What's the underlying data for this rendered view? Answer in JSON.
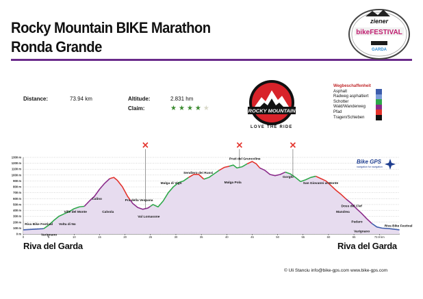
{
  "title_line1": "Rocky Mountain BIKE Marathon",
  "title_line2": "Ronda Grande",
  "logo_festival": {
    "top": "ziener",
    "main": "bikeFESTIVAL",
    "small": "GARDA"
  },
  "stats": {
    "distance_label": "Distance:",
    "distance_value": "73.94 km",
    "altitude_label": "Altitude:",
    "altitude_value": "2.831 hm",
    "claim_label": "Claim:",
    "claim_stars": 4,
    "claim_max": 5
  },
  "brand": {
    "name": "ROCKY MOUNTAIN",
    "tagline": "LOVE THE RIDE"
  },
  "legend": {
    "title": "Wegbeschaffenheit",
    "items": [
      {
        "label": "Asphalt",
        "color": "#3c5cab"
      },
      {
        "label": "Radweg asphaltiert",
        "color": "#7a9ad8"
      },
      {
        "label": "Schotter",
        "color": "#2ea84a"
      },
      {
        "label": "Wald/Wanderweg",
        "color": "#8a2a8a"
      },
      {
        "label": "Pfad",
        "color": "#e3322b"
      },
      {
        "label": "Tragen/Schieben",
        "color": "#111111"
      }
    ]
  },
  "chart_data": {
    "type": "area",
    "xlabel": "",
    "ylabel": "",
    "xlim": [
      0,
      74
    ],
    "ylim": [
      0,
      1300
    ],
    "x_ticks": [
      0,
      5,
      10,
      15,
      20,
      25,
      30,
      35,
      40,
      45,
      50,
      55,
      60,
      65,
      70
    ],
    "x_tick_labels": [
      "0",
      "5",
      "10",
      "15",
      "20",
      "25",
      "30",
      "35",
      "40",
      "45",
      "50",
      "55",
      "60",
      "65",
      "73.9 km"
    ],
    "y_ticks": [
      0,
      100,
      200,
      300,
      400,
      500,
      600,
      700,
      800,
      900,
      1000,
      1100,
      1200,
      1300
    ],
    "y_tick_labels": [
      "0 m",
      "100 m",
      "200 m",
      "300 m",
      "400 m",
      "500 m",
      "600 m",
      "700 m",
      "800 m",
      "900 m",
      "1000 m",
      "1100 m",
      "1200 m",
      "1300 m"
    ],
    "fill_color": "#e7dcef",
    "profile": [
      [
        0,
        70
      ],
      [
        2,
        80
      ],
      [
        4,
        90
      ],
      [
        5,
        150
      ],
      [
        6,
        230
      ],
      [
        7,
        300
      ],
      [
        8,
        340
      ],
      [
        9,
        380
      ],
      [
        10,
        430
      ],
      [
        11,
        460
      ],
      [
        12,
        470
      ],
      [
        13,
        560
      ],
      [
        14,
        640
      ],
      [
        15,
        760
      ],
      [
        16,
        860
      ],
      [
        17,
        940
      ],
      [
        17.8,
        960
      ],
      [
        18.5,
        910
      ],
      [
        19.5,
        800
      ],
      [
        20.5,
        640
      ],
      [
        21.5,
        520
      ],
      [
        22.5,
        450
      ],
      [
        23.5,
        420
      ],
      [
        24.5,
        440
      ],
      [
        25.5,
        500
      ],
      [
        26.5,
        460
      ],
      [
        27.5,
        560
      ],
      [
        28.5,
        700
      ],
      [
        29.5,
        800
      ],
      [
        30.5,
        870
      ],
      [
        31.5,
        900
      ],
      [
        32.5,
        960
      ],
      [
        33.5,
        1010
      ],
      [
        34.5,
        1010
      ],
      [
        35.5,
        930
      ],
      [
        36.5,
        960
      ],
      [
        37.5,
        1020
      ],
      [
        38.5,
        1080
      ],
      [
        39.5,
        1130
      ],
      [
        40.5,
        1150
      ],
      [
        41.3,
        1170
      ],
      [
        42,
        1120
      ],
      [
        43,
        1140
      ],
      [
        44,
        1190
      ],
      [
        45,
        1230
      ],
      [
        45.8,
        1190
      ],
      [
        46.5,
        1120
      ],
      [
        47.5,
        1080
      ],
      [
        48.5,
        1010
      ],
      [
        49.5,
        990
      ],
      [
        50.5,
        1010
      ],
      [
        51.5,
        1050
      ],
      [
        52.5,
        1020
      ],
      [
        53.5,
        960
      ],
      [
        54.5,
        890
      ],
      [
        55.5,
        920
      ],
      [
        56.5,
        960
      ],
      [
        57.5,
        980
      ],
      [
        58.5,
        940
      ],
      [
        59.5,
        900
      ],
      [
        60.5,
        820
      ],
      [
        61.5,
        740
      ],
      [
        62.5,
        670
      ],
      [
        63.5,
        590
      ],
      [
        64.5,
        520
      ],
      [
        65.5,
        430
      ],
      [
        66.5,
        350
      ],
      [
        67.5,
        260
      ],
      [
        68.5,
        180
      ],
      [
        69.5,
        120
      ],
      [
        70.5,
        100
      ],
      [
        72,
        90
      ],
      [
        73.94,
        70
      ]
    ],
    "surface_segments": [
      {
        "from": 0,
        "to": 4,
        "color": "#3c5cab"
      },
      {
        "from": 4,
        "to": 12,
        "color": "#2ea84a"
      },
      {
        "from": 12,
        "to": 17,
        "color": "#8a2a8a"
      },
      {
        "from": 17,
        "to": 21,
        "color": "#e3322b"
      },
      {
        "from": 21,
        "to": 25,
        "color": "#8a2a8a"
      },
      {
        "from": 25,
        "to": 27,
        "color": "#2ea84a"
      },
      {
        "from": 27,
        "to": 32.5,
        "color": "#2ea84a"
      },
      {
        "from": 32.5,
        "to": 35.5,
        "color": "#e3322b"
      },
      {
        "from": 35.5,
        "to": 38.5,
        "color": "#2ea84a"
      },
      {
        "from": 38.5,
        "to": 40.5,
        "color": "#e3322b"
      },
      {
        "from": 40.5,
        "to": 44,
        "color": "#2ea84a"
      },
      {
        "from": 44,
        "to": 46.5,
        "color": "#e3322b"
      },
      {
        "from": 46.5,
        "to": 51.5,
        "color": "#8a2a8a"
      },
      {
        "from": 51.5,
        "to": 54.5,
        "color": "#2ea84a"
      },
      {
        "from": 54.5,
        "to": 57.5,
        "color": "#2ea84a"
      },
      {
        "from": 57.5,
        "to": 63.5,
        "color": "#e3322b"
      },
      {
        "from": 63.5,
        "to": 68.5,
        "color": "#8a2a8a"
      },
      {
        "from": 68.5,
        "to": 73.94,
        "color": "#3c5cab"
      }
    ],
    "markers": [
      {
        "x": 24,
        "y": 1300
      },
      {
        "x": 42.5,
        "y": 1300
      },
      {
        "x": 53,
        "y": 1300
      }
    ],
    "annotations": [
      {
        "text": "Riva Bike Festival",
        "x": 0.3,
        "y": 150
      },
      {
        "text": "Varignano",
        "x": 3.5,
        "y": -30
      },
      {
        "text": "Volta di No",
        "x": 7,
        "y": 150
      },
      {
        "text": "Ville del Monte",
        "x": 8,
        "y": 360
      },
      {
        "text": "Calino",
        "x": 13.5,
        "y": 580
      },
      {
        "text": "Calvola",
        "x": 15.5,
        "y": 360
      },
      {
        "text": "Pra della Vespana",
        "x": 20,
        "y": 560
      },
      {
        "text": "Val Lomasone",
        "x": 22.5,
        "y": 280
      },
      {
        "text": "Malga di Vigo",
        "x": 27,
        "y": 850
      },
      {
        "text": "Sendiero dei Russi",
        "x": 31.5,
        "y": 1020
      },
      {
        "text": "Malga Pola",
        "x": 39.5,
        "y": 860
      },
      {
        "text": "Prati del Gruncoline",
        "x": 40.5,
        "y": 1260
      },
      {
        "text": "Gorghi",
        "x": 51,
        "y": 950
      },
      {
        "text": "San Giovanni al Monte",
        "x": 55,
        "y": 850
      },
      {
        "text": "Doss del Clef",
        "x": 62.5,
        "y": 460
      },
      {
        "text": "Mandrea",
        "x": 61.5,
        "y": 360
      },
      {
        "text": "Padaro",
        "x": 64.5,
        "y": 190
      },
      {
        "text": "Varignano",
        "x": 65,
        "y": 30
      },
      {
        "text": "Riva Bike Festival",
        "x": 71,
        "y": 120
      }
    ],
    "badge": "Bike GPS",
    "badge_sub": "navigation for navigation"
  },
  "place_left": "Riva del Garda",
  "place_right": "Riva del Garda",
  "credits": "© Uli Stanciu   info@bike-gps.com   www.bike-gps.com"
}
